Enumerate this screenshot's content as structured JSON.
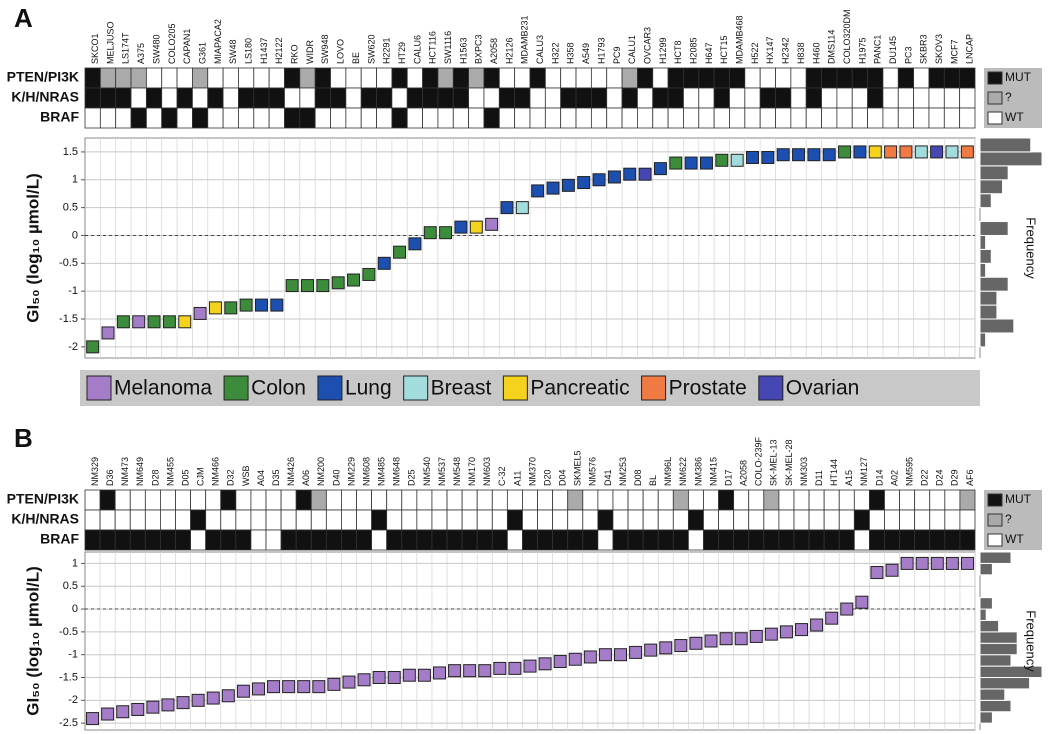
{
  "chart_data": [
    {
      "type": "dotplot",
      "panel_label": "A",
      "ylabel": "GI₅₀ (log₁₀ µmol/L)",
      "categories": [
        "SKCO1",
        "MELJUSO",
        "LS174T",
        "A375",
        "SW480",
        "COLO205",
        "CAPAN1",
        "G361",
        "MIAPACA2",
        "SW48",
        "LS180",
        "H1437",
        "H2122",
        "RKO",
        "WIDR",
        "SW948",
        "LOVO",
        "BE",
        "SW620",
        "H2291",
        "HT29",
        "CALU6",
        "HCT116",
        "SW1116",
        "H1563",
        "BXPC3",
        "A2058",
        "H2126",
        "MDAMB231",
        "CALU3",
        "H322",
        "H358",
        "A549",
        "H1793",
        "PC9",
        "CALU1",
        "OVCAR3",
        "H1299",
        "HCT8",
        "H2085",
        "H647",
        "HCT15",
        "MDAMB468",
        "H522",
        "HX147",
        "H2342",
        "H838",
        "H460",
        "DMS114",
        "COLO320DM",
        "H1975",
        "PANC1",
        "DU145",
        "PC3",
        "SKBR3",
        "SKOV3",
        "MCF7",
        "LNCAP"
      ],
      "values": [
        -2.0,
        -1.75,
        -1.55,
        -1.55,
        -1.55,
        -1.55,
        -1.55,
        -1.4,
        -1.3,
        -1.3,
        -1.25,
        -1.25,
        -1.25,
        -0.9,
        -0.9,
        -0.9,
        -0.85,
        -0.8,
        -0.7,
        -0.5,
        -0.3,
        -0.15,
        0.05,
        0.05,
        0.15,
        0.15,
        0.2,
        0.5,
        0.5,
        0.8,
        0.85,
        0.9,
        0.95,
        1.0,
        1.05,
        1.1,
        1.1,
        1.2,
        1.3,
        1.3,
        1.3,
        1.35,
        1.35,
        1.4,
        1.4,
        1.45,
        1.45,
        1.45,
        1.45,
        1.5,
        1.5,
        1.5,
        1.5,
        1.5,
        1.5,
        1.5,
        1.5,
        1.5
      ],
      "colors": [
        "#3c8c3c",
        "#a57cc8",
        "#3c8c3c",
        "#a57cc8",
        "#3c8c3c",
        "#3c8c3c",
        "#f5d21e",
        "#a57cc8",
        "#f5d21e",
        "#3c8c3c",
        "#3c8c3c",
        "#1d4fb0",
        "#1d4fb0",
        "#3c8c3c",
        "#3c8c3c",
        "#3c8c3c",
        "#3c8c3c",
        "#3c8c3c",
        "#3c8c3c",
        "#1d4fb0",
        "#3c8c3c",
        "#1d4fb0",
        "#3c8c3c",
        "#3c8c3c",
        "#1d4fb0",
        "#f5d21e",
        "#a57cc8",
        "#1d4fb0",
        "#a3dcdc",
        "#1d4fb0",
        "#1d4fb0",
        "#1d4fb0",
        "#1d4fb0",
        "#1d4fb0",
        "#1d4fb0",
        "#1d4fb0",
        "#4646b4",
        "#1d4fb0",
        "#3c8c3c",
        "#1d4fb0",
        "#1d4fb0",
        "#3c8c3c",
        "#a3dcdc",
        "#1d4fb0",
        "#1d4fb0",
        "#1d4fb0",
        "#1d4fb0",
        "#1d4fb0",
        "#1d4fb0",
        "#3c8c3c",
        "#1d4fb0",
        "#f5d21e",
        "#f07a44",
        "#f07a44",
        "#a3dcdc",
        "#4646b4",
        "#a3dcdc",
        "#f07a44"
      ],
      "ylim": [
        -2.2,
        1.75
      ],
      "yticks": [
        -2,
        -1.5,
        -1,
        -0.5,
        0,
        0.5,
        1,
        1.5
      ],
      "grid": true,
      "reference_line": 0,
      "mutation_legend": [
        "MUT",
        "?",
        "WT"
      ],
      "mutation_colors": [
        "#111111",
        "#aaaaaa",
        "#ffffff"
      ],
      "mutation_rows": [
        {
          "name": "PTEN/PI3K",
          "status": [
            "MUT",
            "?",
            "?",
            "?",
            "WT",
            "WT",
            "WT",
            "?",
            "WT",
            "WT",
            "WT",
            "WT",
            "WT",
            "MUT",
            "?",
            "MUT",
            "WT",
            "WT",
            "WT",
            "WT",
            "MUT",
            "WT",
            "MUT",
            "?",
            "MUT",
            "?",
            "MUT",
            "WT",
            "WT",
            "MUT",
            "WT",
            "WT",
            "WT",
            "WT",
            "WT",
            "?",
            "MUT",
            "WT",
            "MUT",
            "MUT",
            "MUT",
            "MUT",
            "MUT",
            "WT",
            "WT",
            "WT",
            "WT",
            "MUT",
            "MUT",
            "MUT",
            "MUT",
            "MUT",
            "WT",
            "MUT",
            "WT",
            "MUT",
            "MUT",
            "MUT"
          ]
        },
        {
          "name": "K/H/NRAS",
          "status": [
            "MUT",
            "MUT",
            "MUT",
            "WT",
            "MUT",
            "WT",
            "MUT",
            "WT",
            "MUT",
            "WT",
            "MUT",
            "MUT",
            "MUT",
            "WT",
            "WT",
            "MUT",
            "MUT",
            "WT",
            "MUT",
            "MUT",
            "WT",
            "MUT",
            "MUT",
            "MUT",
            "MUT",
            "WT",
            "WT",
            "MUT",
            "MUT",
            "WT",
            "WT",
            "MUT",
            "MUT",
            "MUT",
            "WT",
            "MUT",
            "WT",
            "MUT",
            "MUT",
            "WT",
            "WT",
            "MUT",
            "WT",
            "WT",
            "MUT",
            "MUT",
            "WT",
            "MUT",
            "WT",
            "WT",
            "WT",
            "MUT",
            "WT",
            "WT",
            "WT",
            "WT",
            "WT",
            "WT"
          ]
        },
        {
          "name": "BRAF",
          "status": [
            "WT",
            "WT",
            "WT",
            "MUT",
            "WT",
            "MUT",
            "WT",
            "MUT",
            "WT",
            "WT",
            "WT",
            "WT",
            "WT",
            "MUT",
            "MUT",
            "WT",
            "WT",
            "WT",
            "WT",
            "WT",
            "MUT",
            "WT",
            "WT",
            "WT",
            "WT",
            "WT",
            "MUT",
            "WT",
            "WT",
            "WT",
            "WT",
            "WT",
            "WT",
            "WT",
            "WT",
            "WT",
            "WT",
            "WT",
            "WT",
            "WT",
            "WT",
            "WT",
            "WT",
            "WT",
            "WT",
            "WT",
            "WT",
            "WT",
            "WT",
            "WT",
            "WT",
            "WT",
            "WT",
            "WT",
            "WT",
            "WT",
            "WT",
            "WT"
          ]
        }
      ],
      "histogram": {
        "label": "Frequency",
        "bins": [
          -2.25,
          -2,
          -1.75,
          -1.5,
          -1.25,
          -1,
          -0.75,
          -0.5,
          -0.25,
          0,
          0.25,
          0.5,
          0.75,
          1,
          1.25,
          1.5,
          1.75
        ],
        "counts": [
          0,
          1,
          6,
          3,
          3,
          5,
          1,
          2,
          1,
          5,
          0,
          2,
          4,
          5,
          11,
          9
        ]
      },
      "legend": [
        {
          "name": "Melanoma",
          "color": "#a57cc8"
        },
        {
          "name": "Colon",
          "color": "#3c8c3c"
        },
        {
          "name": "Lung",
          "color": "#1d4fb0"
        },
        {
          "name": "Breast",
          "color": "#a3dcdc"
        },
        {
          "name": "Pancreatic",
          "color": "#f5d21e"
        },
        {
          "name": "Prostate",
          "color": "#f07a44"
        },
        {
          "name": "Ovarian",
          "color": "#4646b4"
        }
      ]
    },
    {
      "type": "dotplot",
      "panel_label": "B",
      "ylabel": "GI₅₀ (log₁₀ µmol/L)",
      "categories": [
        "NM329",
        "D36",
        "NM473",
        "NM649",
        "D28",
        "NM455",
        "D05",
        "CJM",
        "NM466",
        "D32",
        "WSB",
        "A04",
        "D35",
        "NM426",
        "A06",
        "NM200",
        "D40",
        "NM229",
        "NM608",
        "NM485",
        "NM648",
        "D25",
        "NM540",
        "NM537",
        "NM548",
        "NM170",
        "NM603",
        "C-32",
        "A11",
        "NM370",
        "D20",
        "D04",
        "SKMEL5",
        "NM576",
        "D41",
        "NM253",
        "D08",
        "BL",
        "NM96L",
        "NM622",
        "NM386",
        "NM415",
        "D17",
        "A2058",
        "COLO-239F",
        "SK-MEL-13",
        "SK-MEL-28",
        "NM303",
        "D11",
        "HT144",
        "A15",
        "NM127",
        "D14",
        "A02",
        "NM595",
        "D22",
        "D24",
        "D29",
        "AF6"
      ],
      "values": [
        -2.4,
        -2.3,
        -2.25,
        -2.2,
        -2.15,
        -2.1,
        -2.05,
        -2.0,
        -1.95,
        -1.9,
        -1.8,
        -1.75,
        -1.7,
        -1.7,
        -1.7,
        -1.7,
        -1.65,
        -1.6,
        -1.55,
        -1.5,
        -1.5,
        -1.45,
        -1.45,
        -1.4,
        -1.35,
        -1.35,
        -1.35,
        -1.3,
        -1.3,
        -1.25,
        -1.2,
        -1.15,
        -1.1,
        -1.05,
        -1.0,
        -1.0,
        -0.95,
        -0.9,
        -0.85,
        -0.8,
        -0.75,
        -0.7,
        -0.65,
        -0.65,
        -0.6,
        -0.55,
        -0.5,
        -0.45,
        -0.35,
        -0.2,
        0.0,
        0.15,
        0.8,
        0.85,
        1.0,
        1.0,
        1.0,
        1.0,
        1.0
      ],
      "color": "#a57cc8",
      "ylim": [
        -2.65,
        1.25
      ],
      "yticks": [
        -2.5,
        -2,
        -1.5,
        -1,
        -0.5,
        0,
        0.5,
        1
      ],
      "grid": true,
      "reference_line": 0,
      "mutation_legend": [
        "MUT",
        "?",
        "WT"
      ],
      "mutation_colors": [
        "#111111",
        "#aaaaaa",
        "#ffffff"
      ],
      "mutation_rows": [
        {
          "name": "PTEN/PI3K",
          "status": [
            "WT",
            "MUT",
            "WT",
            "WT",
            "WT",
            "WT",
            "WT",
            "WT",
            "WT",
            "MUT",
            "WT",
            "WT",
            "WT",
            "WT",
            "MUT",
            "?",
            "WT",
            "WT",
            "WT",
            "WT",
            "WT",
            "WT",
            "WT",
            "WT",
            "WT",
            "WT",
            "WT",
            "WT",
            "WT",
            "WT",
            "WT",
            "WT",
            "?",
            "WT",
            "WT",
            "WT",
            "WT",
            "WT",
            "WT",
            "?",
            "WT",
            "WT",
            "MUT",
            "WT",
            "WT",
            "?",
            "WT",
            "WT",
            "WT",
            "WT",
            "WT",
            "WT",
            "MUT",
            "WT",
            "WT",
            "WT",
            "WT",
            "WT",
            "?"
          ]
        },
        {
          "name": "K/H/NRAS",
          "status": [
            "WT",
            "WT",
            "WT",
            "WT",
            "WT",
            "WT",
            "WT",
            "MUT",
            "WT",
            "WT",
            "WT",
            "WT",
            "WT",
            "WT",
            "WT",
            "WT",
            "WT",
            "WT",
            "WT",
            "MUT",
            "WT",
            "WT",
            "WT",
            "WT",
            "WT",
            "WT",
            "WT",
            "WT",
            "MUT",
            "WT",
            "WT",
            "WT",
            "WT",
            "WT",
            "MUT",
            "WT",
            "WT",
            "WT",
            "WT",
            "WT",
            "MUT",
            "WT",
            "WT",
            "WT",
            "WT",
            "WT",
            "WT",
            "WT",
            "WT",
            "WT",
            "WT",
            "MUT",
            "WT",
            "WT",
            "WT",
            "WT",
            "WT",
            "WT",
            "WT"
          ]
        },
        {
          "name": "BRAF",
          "status": [
            "MUT",
            "MUT",
            "MUT",
            "MUT",
            "MUT",
            "MUT",
            "MUT",
            "WT",
            "MUT",
            "MUT",
            "MUT",
            "WT",
            "WT",
            "MUT",
            "MUT",
            "MUT",
            "MUT",
            "MUT",
            "MUT",
            "WT",
            "MUT",
            "MUT",
            "MUT",
            "MUT",
            "MUT",
            "MUT",
            "MUT",
            "MUT",
            "WT",
            "MUT",
            "MUT",
            "MUT",
            "MUT",
            "MUT",
            "WT",
            "MUT",
            "MUT",
            "MUT",
            "MUT",
            "MUT",
            "WT",
            "MUT",
            "MUT",
            "MUT",
            "MUT",
            "MUT",
            "MUT",
            "MUT",
            "MUT",
            "MUT",
            "MUT",
            "WT",
            "MUT",
            "MUT",
            "MUT",
            "MUT",
            "MUT",
            "MUT",
            "MUT"
          ]
        }
      ],
      "histogram": {
        "label": "Frequency",
        "bins": [
          -2.5,
          -2.25,
          -2,
          -1.75,
          -1.5,
          -1.25,
          -1,
          -0.75,
          -0.5,
          -0.25,
          0,
          0.25,
          0.5,
          0.75,
          1,
          1.25
        ],
        "counts": [
          2,
          5,
          4,
          8,
          10,
          5,
          6,
          6,
          3,
          1,
          2,
          0,
          0,
          2,
          5
        ]
      }
    }
  ]
}
